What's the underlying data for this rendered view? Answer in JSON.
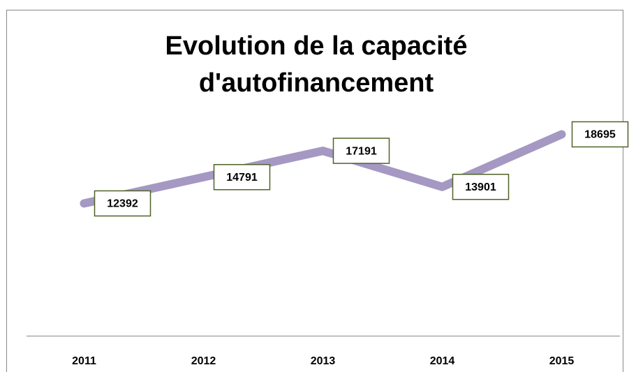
{
  "chart_data": {
    "type": "line",
    "title": "Evolution de la capacité d'autofinancement",
    "categories": [
      "2011",
      "2012",
      "2013",
      "2014",
      "2015"
    ],
    "values": [
      12392,
      14791,
      17191,
      13901,
      18695
    ],
    "color": "#a598c2",
    "label_border": "#4f6228",
    "ylim": [
      0,
      20000
    ]
  }
}
